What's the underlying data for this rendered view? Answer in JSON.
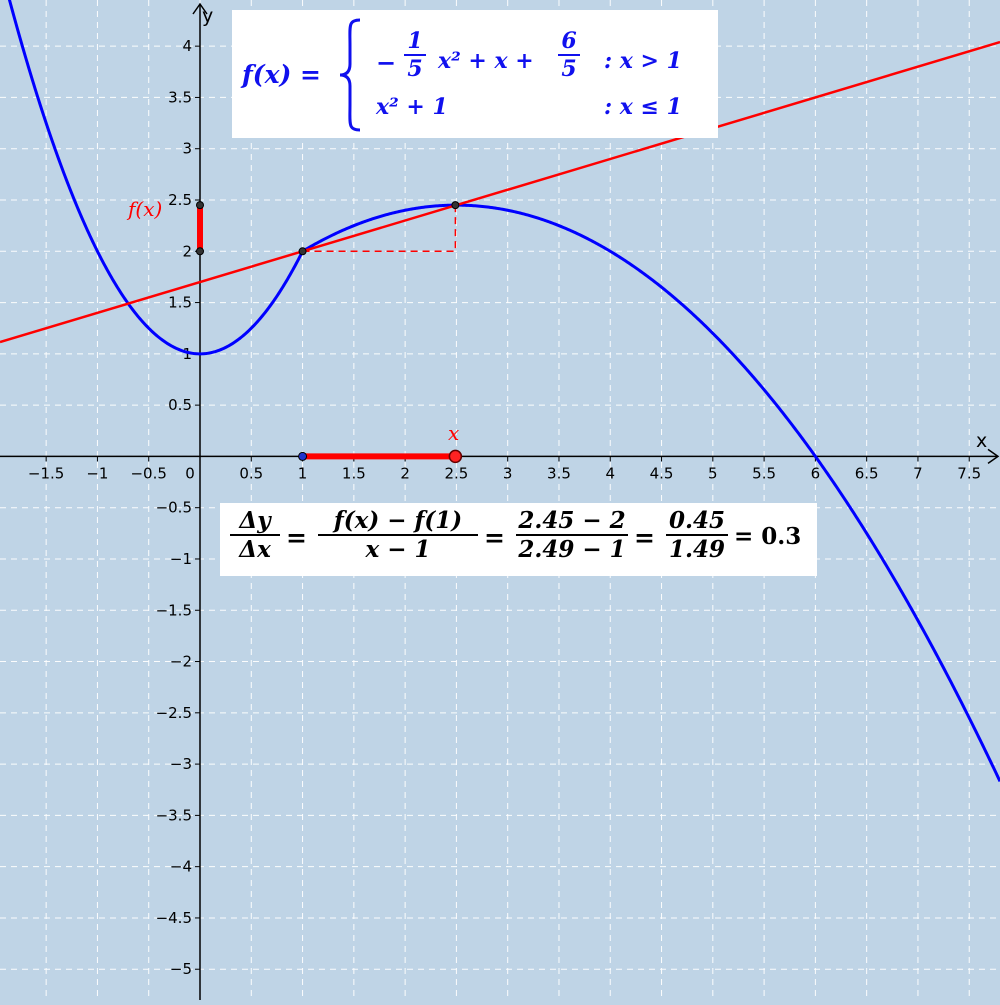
{
  "chart_data": {
    "type": "line",
    "title": "",
    "xlabel": "x",
    "ylabel": "y",
    "xlim": [
      -1.95,
      7.8
    ],
    "ylim": [
      -5.3,
      4.45
    ],
    "grid": true,
    "x_ticks": [
      -1.5,
      -1,
      -0.5,
      0,
      0.5,
      1,
      1.5,
      2,
      2.5,
      3,
      3.5,
      4,
      4.5,
      5,
      5.5,
      6,
      6.5,
      7,
      7.5
    ],
    "x_tick_labels": [
      "−1.5",
      "−1",
      "−0.5",
      "0",
      "0.5",
      "1",
      "1.5",
      "2",
      "2.5",
      "3",
      "3.5",
      "4",
      "4.5",
      "5",
      "5.5",
      "6",
      "6.5",
      "7",
      "7.5"
    ],
    "y_ticks": [
      4,
      3.5,
      3,
      2.5,
      2,
      1.5,
      1,
      0.5,
      -0.5,
      -1,
      -1.5,
      -2,
      -2.5,
      -3,
      -3.5,
      -4,
      -4.5,
      -5
    ],
    "y_tick_labels": [
      "4",
      "3.5",
      "3",
      "2.5",
      "2",
      "1.5",
      "1",
      "0.5",
      "−0.5",
      "−1",
      "−1.5",
      "−2",
      "−2.5",
      "−3",
      "−3.5",
      "−4",
      "−4.5",
      "−5"
    ],
    "function": {
      "pieces": [
        {
          "expr": "-1/5 x^2 + x + 6/5",
          "domain": "x > 1",
          "a": -0.2,
          "b": 1,
          "c": 1.2
        },
        {
          "expr": "x^2 + 1",
          "domain": "x ≤ 1",
          "a": 1,
          "b": 0,
          "c": 1
        }
      ],
      "color": "#0000ff"
    },
    "secant": {
      "x1": 1,
      "y1": 2,
      "x2": 2.49,
      "y2": 2.45,
      "slope": 0.3,
      "color": "#ff0000"
    },
    "x_label": "x",
    "fx_label": "f(x)",
    "formula": {
      "lhs": "f(x) =",
      "piece1": {
        "minus": "−",
        "num": "1",
        "den": "5",
        "rest": "x² + x +",
        "num2": "6",
        "den2": "5",
        "cond": ": x > 1"
      },
      "piece2": {
        "expr": "x² + 1",
        "cond": ": x ≤ 1"
      }
    },
    "quotient": {
      "f1": {
        "num": "Δy",
        "den": "Δx"
      },
      "f2": {
        "num": "f(x) − f(1)",
        "den": "x − 1"
      },
      "f3": {
        "num": "2.45 − 2",
        "den": "2.49 − 1"
      },
      "f4": {
        "num": "0.45",
        "den": "1.49"
      },
      "eq": "=",
      "result": "= 0.3"
    }
  }
}
